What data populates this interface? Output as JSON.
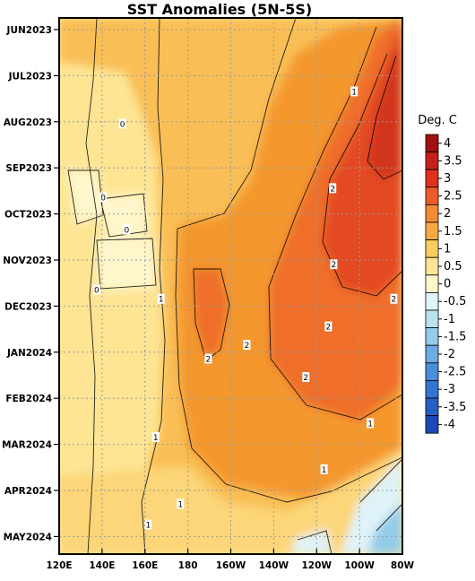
{
  "chart_data": {
    "type": "heatmap",
    "title": "SST Anomalies (5N-5S)",
    "xlabel": "",
    "ylabel": "",
    "x_ticks": [
      "120E",
      "140E",
      "160E",
      "180",
      "160W",
      "140W",
      "120W",
      "100W",
      "80W"
    ],
    "x_range_deg_east": [
      120,
      280
    ],
    "y_ticks": [
      "JUN2023",
      "JUL2023",
      "AUG2023",
      "SEP2023",
      "OCT2023",
      "NOV2023",
      "DEC2023",
      "JAN2024",
      "FEB2024",
      "MAR2024",
      "APR2024",
      "MAY2024"
    ],
    "y_direction": "time increases downward",
    "grid": "dotted",
    "colorbar": {
      "title": "Deg. C",
      "labels": [
        "4",
        "3.5",
        "3",
        "2.5",
        "2",
        "1.5",
        "1",
        "0.5",
        "0",
        "-0.5",
        "-1",
        "-1.5",
        "-2",
        "-2.5",
        "-3",
        "-3.5",
        "-4"
      ],
      "colors": [
        "#a01010",
        "#c41f18",
        "#e0301e",
        "#ec5a2a",
        "#f28a33",
        "#f7aa44",
        "#fbcc5e",
        "#fde594",
        "#fff6cc",
        "#dff3f8",
        "#b9e2f0",
        "#93cbea",
        "#6cabe3",
        "#4b8ed9",
        "#3474d0",
        "#265ec4",
        "#1c48b8"
      ],
      "placement": "right"
    },
    "contour_labels": [
      {
        "text": "0",
        "lon": 149.5,
        "month": 2.05
      },
      {
        "text": "0",
        "lon": 140.5,
        "month": 3.65
      },
      {
        "text": "0",
        "lon": 151.5,
        "month": 4.35
      },
      {
        "text": "0",
        "lon": 137.5,
        "month": 5.65
      },
      {
        "text": "1",
        "lon": 257.5,
        "month": 1.35
      },
      {
        "text": "2",
        "lon": 247.5,
        "month": 3.45
      },
      {
        "text": "2",
        "lon": 248.0,
        "month": 5.1
      },
      {
        "text": "2",
        "lon": 245.5,
        "month": 6.45
      },
      {
        "text": "2",
        "lon": 189.5,
        "month": 7.15
      },
      {
        "text": "2",
        "lon": 207.5,
        "month": 6.85
      },
      {
        "text": "2",
        "lon": 235.0,
        "month": 7.55
      },
      {
        "text": "2",
        "lon": 276.0,
        "month": 5.85
      },
      {
        "text": "1",
        "lon": 167.5,
        "month": 5.85
      },
      {
        "text": "1",
        "lon": 165.0,
        "month": 8.85
      },
      {
        "text": "1",
        "lon": 265.0,
        "month": 8.55
      },
      {
        "text": "1",
        "lon": 243.5,
        "month": 9.55
      },
      {
        "text": "1",
        "lon": 176.5,
        "month": 10.3
      },
      {
        "text": "1",
        "lon": 161.5,
        "month": 10.75
      }
    ]
  }
}
